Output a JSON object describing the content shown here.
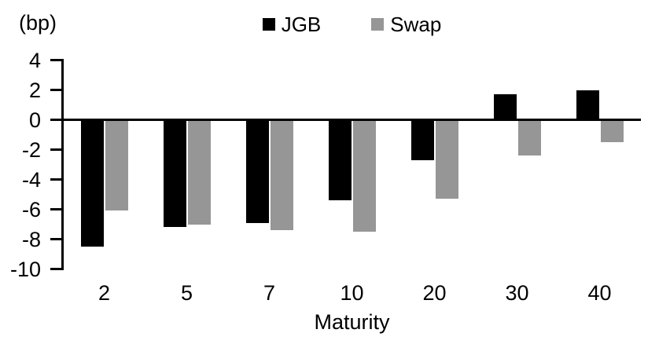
{
  "chart_data": {
    "type": "bar",
    "title": "",
    "unit_label": "(bp)",
    "xlabel": "Maturity",
    "categories": [
      "2",
      "5",
      "7",
      "10",
      "20",
      "30",
      "40"
    ],
    "series": [
      {
        "name": "JGB",
        "color": "#000000",
        "values": [
          -8.5,
          -7.2,
          -6.9,
          -5.4,
          -2.7,
          1.7,
          2.0
        ]
      },
      {
        "name": "Swap",
        "color": "#969696",
        "values": [
          -6.1,
          -7.0,
          -7.4,
          -7.5,
          -5.3,
          -2.4,
          -1.5
        ]
      }
    ],
    "ylim": [
      -10,
      4
    ],
    "yticks": [
      4,
      2,
      0,
      -2,
      -4,
      -6,
      -8,
      -10
    ],
    "grid": false,
    "legend_position": "top",
    "axis_color": "#000000",
    "background_color": "#ffffff"
  }
}
